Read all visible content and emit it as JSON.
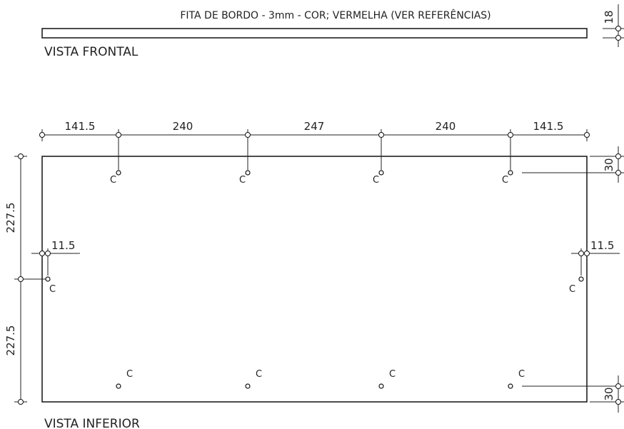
{
  "header_note": "FITA DE BORDO - 3mm - COR; VERMELHA (VER REFERÊNCIAS)",
  "front_view": {
    "label": "VISTA FRONTAL",
    "thickness": "18"
  },
  "bottom_view": {
    "label": "VISTA INFERIOR",
    "top_dims": [
      "141.5",
      "240",
      "247",
      "240",
      "141.5"
    ],
    "left_dims": [
      "227.5",
      "227.5"
    ],
    "top_offset": "30",
    "bottom_offset": "30",
    "side_offset_left": "11.5",
    "side_offset_right": "11.5",
    "hole_label": "C"
  }
}
